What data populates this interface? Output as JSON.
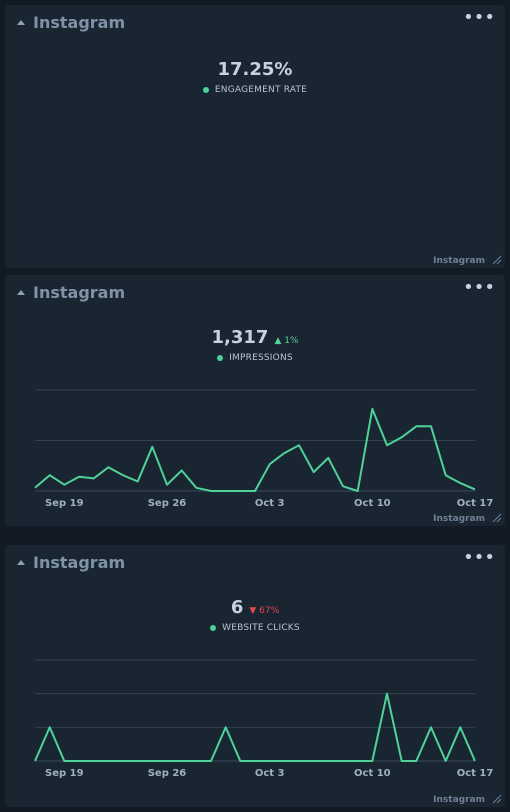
{
  "cards": [
    {
      "title": "Instagram",
      "metric_value": "17.25%",
      "metric_label": "ENGAGEMENT RATE",
      "change": "",
      "source": "Instagram"
    },
    {
      "title": "Instagram",
      "metric_value": "1,317",
      "metric_label": "IMPRESSIONS",
      "change": "▲ 1%",
      "change_direction": "up",
      "source": "Instagram"
    },
    {
      "title": "Instagram",
      "metric_value": "6",
      "metric_label": "WEBSITE CLICKS",
      "change": "▼ 67%",
      "change_direction": "down",
      "source": "Instagram"
    }
  ],
  "colors": {
    "line": "#4fd19a",
    "up": "#4fd19a",
    "down": "#e0474c",
    "card_bg": "#1a2532",
    "page_bg": "#121b24"
  },
  "icons": [
    "collapse-caret-icon",
    "more-options-icon",
    "resize-handle-icon",
    "legend-dot-icon"
  ],
  "chart_data": [
    {
      "type": "line",
      "series": [
        {
          "values": [
            2,
            10,
            4,
            9,
            8,
            15,
            10,
            6,
            28,
            4,
            13,
            2,
            0,
            0,
            0,
            0,
            17,
            24,
            29,
            12,
            21,
            3,
            0,
            52,
            29,
            34,
            41,
            41,
            10,
            5,
            1
          ]
        }
      ],
      "x": [
        "Sep 17",
        "Sep 18",
        "Sep 19",
        "Sep 20",
        "Sep 21",
        "Sep 22",
        "Sep 23",
        "Sep 24",
        "Sep 25",
        "Sep 26",
        "Sep 27",
        "Sep 28",
        "Sep 29",
        "Sep 30",
        "Oct 1",
        "Oct 2",
        "Oct 3",
        "Oct 4",
        "Oct 5",
        "Oct 6",
        "Oct 7",
        "Oct 8",
        "Oct 9",
        "Oct 10",
        "Oct 11",
        "Oct 12",
        "Oct 13",
        "Oct 14",
        "Oct 15",
        "Oct 16",
        "Oct 17"
      ],
      "tick_labels": [
        "Sep 19",
        "Sep 26",
        "Oct 3",
        "Oct 10",
        "Oct 17"
      ],
      "ylim": [
        0,
        64
      ],
      "grid": true
    },
    {
      "type": "line",
      "series": [
        {
          "values": [
            0,
            1,
            0,
            0,
            0,
            0,
            0,
            0,
            0,
            0,
            0,
            0,
            0,
            1,
            0,
            0,
            0,
            0,
            0,
            0,
            0,
            0,
            0,
            0,
            2,
            0,
            0,
            1,
            0,
            1,
            0
          ]
        }
      ],
      "x": [
        "Sep 17",
        "Sep 18",
        "Sep 19",
        "Sep 20",
        "Sep 21",
        "Sep 22",
        "Sep 23",
        "Sep 24",
        "Sep 25",
        "Sep 26",
        "Sep 27",
        "Sep 28",
        "Sep 29",
        "Sep 30",
        "Oct 1",
        "Oct 2",
        "Oct 3",
        "Oct 4",
        "Oct 5",
        "Oct 6",
        "Oct 7",
        "Oct 8",
        "Oct 9",
        "Oct 10",
        "Oct 11",
        "Oct 12",
        "Oct 13",
        "Oct 14",
        "Oct 15",
        "Oct 16",
        "Oct 17"
      ],
      "tick_labels": [
        "Sep 19",
        "Sep 26",
        "Oct 3",
        "Oct 10",
        "Oct 17"
      ],
      "ylim": [
        0,
        3
      ],
      "grid": true
    }
  ]
}
